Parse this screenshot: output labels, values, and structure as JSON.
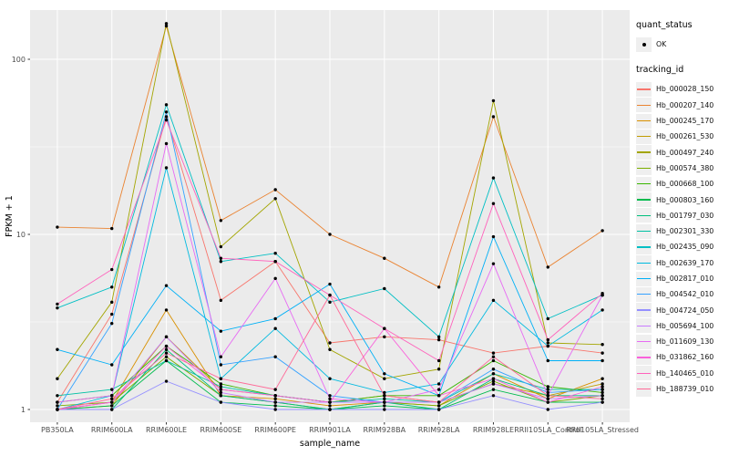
{
  "figure": {
    "panel_bg": "#EBEBEB",
    "grid_color": "#FFFFFF",
    "tick_text_color": "#4D4D4D",
    "point_color": "#000000"
  },
  "legend": {
    "quant_status_title": "quant_status",
    "quant_status_items": [
      {
        "label": "OK",
        "symbol": "point"
      }
    ],
    "tracking_id_title": "tracking_id"
  },
  "chart_data": {
    "type": "line",
    "title": "",
    "xlabel": "sample_name",
    "ylabel": "FPKM + 1",
    "y_scale": "log10",
    "yticks": [
      1,
      10,
      100
    ],
    "ylim": [
      1,
      200
    ],
    "grid": true,
    "legend_position": "right",
    "point_shape": "solid-black-point",
    "categories": [
      "PB350LA",
      "RRIM600LA",
      "RRIM600LE",
      "RRIM600SE",
      "RRIM600PE",
      "RRIM901LA",
      "RRIM928BA",
      "RRIM928LA",
      "RRIM928LE",
      "RRII105LA_Control",
      "RRII105LA_Stressed"
    ],
    "series": [
      {
        "name": "Hb_000028_150",
        "color": "#F8766D",
        "values": [
          1.1,
          3.5,
          47,
          4.2,
          7.0,
          2.4,
          2.6,
          2.5,
          2.1,
          2.3,
          2.1
        ]
      },
      {
        "name": "Hb_000207_140",
        "color": "#EA8331",
        "values": [
          11,
          10.8,
          155,
          12,
          18,
          10,
          7.3,
          5.0,
          47,
          6.5,
          10.5
        ]
      },
      {
        "name": "Hb_000245_170",
        "color": "#D89000",
        "values": [
          1.0,
          1.1,
          3.7,
          1.2,
          1.15,
          1.05,
          1.1,
          1.05,
          1.6,
          1.15,
          1.5
        ]
      },
      {
        "name": "Hb_000261_530",
        "color": "#C09B00",
        "values": [
          1.0,
          1.05,
          2.6,
          1.3,
          1.2,
          1.1,
          1.2,
          1.1,
          1.4,
          1.2,
          1.4
        ]
      },
      {
        "name": "Hb_000497_240",
        "color": "#A3A500",
        "values": [
          1.5,
          4.1,
          160,
          8.5,
          16,
          2.2,
          1.5,
          1.7,
          58,
          2.4,
          2.35
        ]
      },
      {
        "name": "Hb_000574_380",
        "color": "#7CAE00",
        "values": [
          1.05,
          1.1,
          2.0,
          1.2,
          1.1,
          1.0,
          1.1,
          1.05,
          1.45,
          1.1,
          1.2
        ]
      },
      {
        "name": "Hb_000668_100",
        "color": "#39B600",
        "values": [
          1.1,
          1.2,
          2.3,
          1.4,
          1.2,
          1.1,
          1.2,
          1.2,
          1.9,
          1.35,
          1.25
        ]
      },
      {
        "name": "Hb_000803_160",
        "color": "#00BB4E",
        "values": [
          1.0,
          1.05,
          1.9,
          1.1,
          1.05,
          1.0,
          1.05,
          1.0,
          1.3,
          1.1,
          1.1
        ]
      },
      {
        "name": "Hb_001797_030",
        "color": "#00BF7D",
        "values": [
          1.0,
          1.0,
          2.2,
          1.2,
          1.1,
          1.0,
          1.1,
          1.0,
          1.5,
          1.2,
          1.2
        ]
      },
      {
        "name": "Hb_002301_330",
        "color": "#00C1A3",
        "values": [
          1.2,
          1.3,
          1.9,
          1.35,
          1.2,
          1.1,
          1.15,
          1.1,
          1.6,
          1.3,
          1.3
        ]
      },
      {
        "name": "Hb_002435_090",
        "color": "#00BFC4",
        "values": [
          3.8,
          5.0,
          55,
          7.0,
          7.8,
          4.1,
          4.9,
          2.6,
          21,
          3.3,
          4.5
        ]
      },
      {
        "name": "Hb_002639_170",
        "color": "#00BAE0",
        "values": [
          1.0,
          1.2,
          24,
          1.5,
          2.9,
          1.5,
          1.25,
          1.4,
          4.2,
          2.3,
          3.7
        ]
      },
      {
        "name": "Hb_002817_010",
        "color": "#00B0F6",
        "values": [
          2.2,
          1.8,
          5.1,
          2.8,
          3.3,
          5.2,
          1.6,
          1.2,
          9.7,
          1.9,
          1.9
        ]
      },
      {
        "name": "Hb_004542_010",
        "color": "#35A2FF",
        "values": [
          1.0,
          3.1,
          50,
          1.8,
          2.0,
          1.2,
          1.1,
          1.1,
          1.7,
          1.25,
          1.3
        ]
      },
      {
        "name": "Hb_004724_050",
        "color": "#9590FF",
        "values": [
          1.0,
          1.0,
          1.45,
          1.1,
          1.0,
          1.0,
          1.0,
          1.0,
          1.2,
          1.0,
          1.1
        ]
      },
      {
        "name": "Hb_005694_100",
        "color": "#C77CFF",
        "values": [
          1.0,
          1.1,
          2.6,
          1.25,
          1.1,
          1.1,
          1.1,
          1.1,
          1.4,
          1.15,
          1.2
        ]
      },
      {
        "name": "Hb_011609_130",
        "color": "#E76BF3",
        "values": [
          1.1,
          1.2,
          33,
          2.0,
          5.6,
          1.15,
          1.1,
          1.3,
          6.8,
          1.2,
          4.5
        ]
      },
      {
        "name": "Hb_031862_160",
        "color": "#FA62DB",
        "values": [
          1.0,
          1.1,
          2.3,
          1.3,
          1.2,
          1.1,
          2.9,
          1.2,
          1.5,
          1.1,
          1.35
        ]
      },
      {
        "name": "Hb_140465_010",
        "color": "#FF62BC",
        "values": [
          4.0,
          6.3,
          45,
          7.3,
          7.0,
          4.5,
          2.9,
          1.9,
          15,
          2.5,
          4.6
        ]
      },
      {
        "name": "Hb_188739_010",
        "color": "#FF6A98",
        "values": [
          1.0,
          1.15,
          2.1,
          1.5,
          1.3,
          4.5,
          1.2,
          1.1,
          2.0,
          1.2,
          1.15
        ]
      }
    ]
  }
}
